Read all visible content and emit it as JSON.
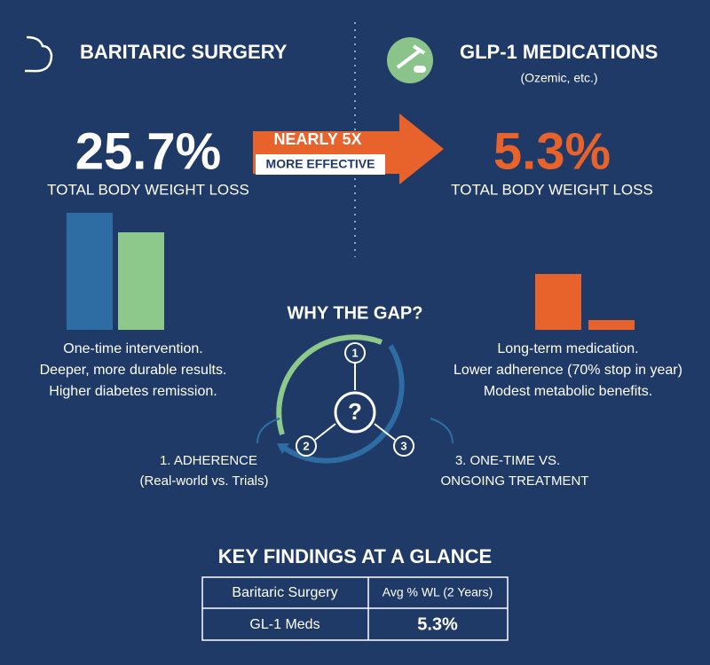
{
  "left": {
    "title": "BARITARIC SURGERY",
    "stat": "25.7%",
    "stat_label": "TOTAL BODY WEIGHT LOSS",
    "notes": [
      "One-time intervention.",
      "Deeper, more durable results.",
      "Higher diabetes remission."
    ]
  },
  "right": {
    "title": "GLP-1 MEDICATIONS",
    "subtitle": "(Ozemic, etc.)",
    "stat": "5.3%",
    "stat_label": "TOTAL BODY WEIGHT LOSS",
    "notes": [
      "Long-term medication.",
      "Lower adherence (70% stop in  year)",
      "Modest metabolic benefits."
    ]
  },
  "comparison": {
    "line1": "NEARLY 5X",
    "line2": "MORE EFFECTIVE"
  },
  "gap": {
    "title": "WHY THE GAP?",
    "center": "?",
    "nodes": [
      "1",
      "2",
      "3"
    ],
    "label1": [
      "1. ADHERENCE",
      "(Real-world vs. Trials)"
    ],
    "label3": [
      "3. ONE-TIME VS.",
      "ONGOING TREATMENT"
    ]
  },
  "table": {
    "title": "KEY FINDINGS AT A GLANCE",
    "rows": [
      [
        "Baritaric Surgery",
        "Avg % WL (2 Years)"
      ],
      [
        "GL-1 Meds",
        "5.3%"
      ]
    ]
  }
}
